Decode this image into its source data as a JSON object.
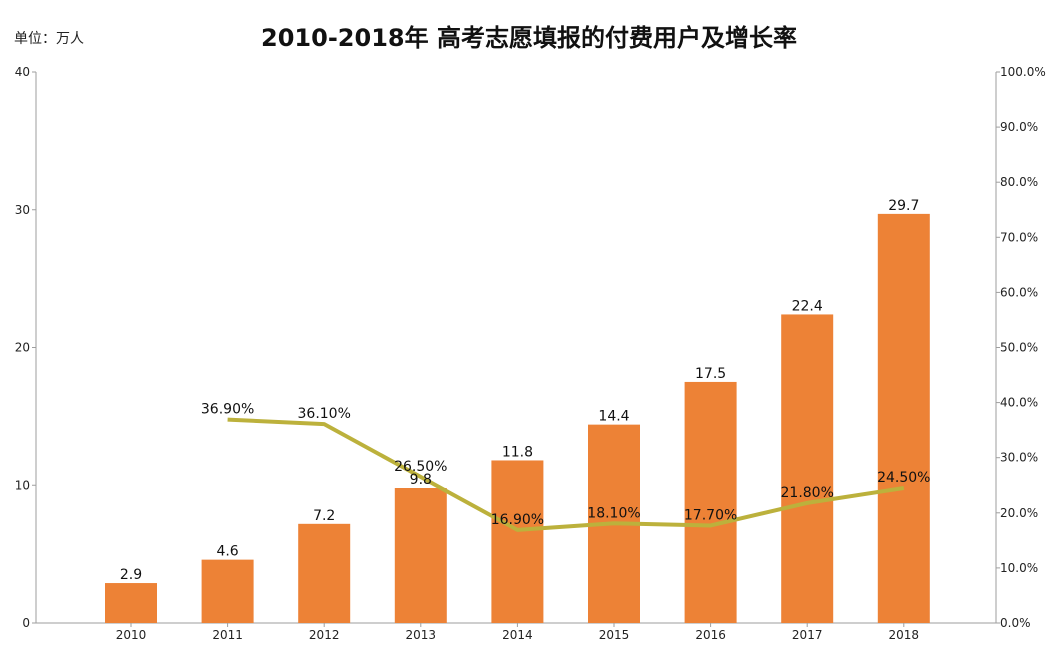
{
  "unit_label": "单位：万人",
  "title": "2010-2018年  高考志愿填报的付费用户及增长率",
  "colors": {
    "bar": "#ED8236",
    "line": "#BCB13C",
    "axis": "#9E9E9E",
    "text": "#222222"
  },
  "chart_data": {
    "type": "bar",
    "title": "2010-2018年  高考志愿填报的付费用户及增长率",
    "unit": "单位：万人",
    "categories": [
      "2010",
      "2011",
      "2012",
      "2013",
      "2014",
      "2015",
      "2016",
      "2017",
      "2018"
    ],
    "series": [
      {
        "type": "bar",
        "axis": "left",
        "values": [
          2.9,
          4.6,
          7.2,
          9.8,
          11.8,
          14.4,
          17.5,
          22.4,
          29.7
        ],
        "labels": [
          "2.9",
          "4.6",
          "7.2",
          "9.8",
          "11.8",
          "14.4",
          "17.5",
          "22.4",
          "29.7"
        ]
      },
      {
        "type": "line",
        "axis": "right",
        "values": [
          null,
          36.9,
          36.1,
          26.5,
          16.9,
          18.1,
          17.7,
          21.8,
          24.5
        ],
        "labels": [
          "",
          "36.90%",
          "36.10%",
          "26.50%",
          "16.90%",
          "18.10%",
          "17.70%",
          "21.80%",
          "24.50%"
        ]
      }
    ],
    "ylim_left": [
      0,
      40
    ],
    "yticks_left": [
      "0",
      "10",
      "20",
      "30",
      "40"
    ],
    "ylim_right": [
      0,
      100
    ],
    "yticks_right": [
      "0.0%",
      "10.0%",
      "20.0%",
      "30.0%",
      "40.0%",
      "50.0%",
      "60.0%",
      "70.0%",
      "80.0%",
      "90.0%",
      "100.0%"
    ],
    "grid": false,
    "legend": "none"
  }
}
